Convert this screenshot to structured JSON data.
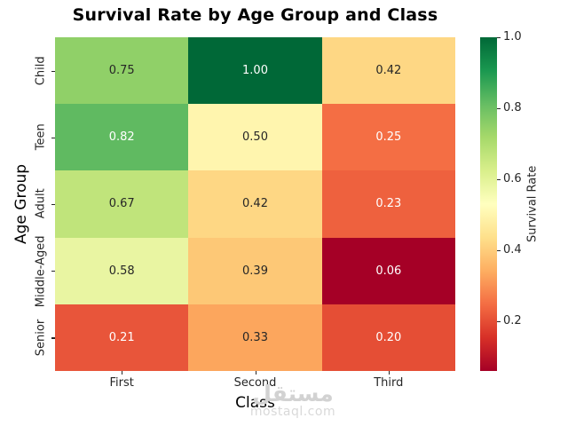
{
  "title": "Survival Rate by Age Group and Class",
  "chart_data": {
    "type": "heatmap",
    "title": "Survival Rate by Age Group and Class",
    "xlabel": "Class",
    "ylabel": "Age Group",
    "columns": [
      "First",
      "Second",
      "Third"
    ],
    "rows": [
      "Child",
      "Teen",
      "Adult",
      "Middle-Aged",
      "Senior"
    ],
    "values": [
      [
        0.75,
        1.0,
        0.42
      ],
      [
        0.82,
        0.5,
        0.25
      ],
      [
        0.67,
        0.42,
        0.23
      ],
      [
        0.58,
        0.39,
        0.06
      ],
      [
        0.21,
        0.33,
        0.2
      ]
    ],
    "cell_labels": [
      [
        "0.75",
        "1.00",
        "0.42"
      ],
      [
        "0.82",
        "0.50",
        "0.25"
      ],
      [
        "0.67",
        "0.42",
        "0.23"
      ],
      [
        "0.58",
        "0.39",
        "0.06"
      ],
      [
        "0.21",
        "0.33",
        "0.20"
      ]
    ],
    "cell_colors": [
      [
        "#90d068",
        "#006837",
        "#fed784"
      ],
      [
        "#60ba61",
        "#fff5ae",
        "#f46e44"
      ],
      [
        "#c0e47b",
        "#fed784",
        "#ee613e"
      ],
      [
        "#e9f5a2",
        "#fdc876",
        "#a50026"
      ],
      [
        "#e8553a",
        "#fca65d",
        "#e54e35"
      ]
    ],
    "cell_text_colors": [
      [
        "#262626",
        "#ffffff",
        "#262626"
      ],
      [
        "#ffffff",
        "#262626",
        "#ffffff"
      ],
      [
        "#262626",
        "#262626",
        "#ffffff"
      ],
      [
        "#262626",
        "#262626",
        "#ffffff"
      ],
      [
        "#ffffff",
        "#262626",
        "#ffffff"
      ]
    ],
    "colormap": "RdYlGn",
    "grid": false,
    "colorbar": {
      "label": "Survival Rate",
      "vmin": 0.06,
      "vmax": 1.0,
      "tick_labels": [
        "1.0",
        "0.8",
        "0.6",
        "0.4",
        "0.2"
      ],
      "tick_values": [
        1.0,
        0.8,
        0.6,
        0.4,
        0.2
      ],
      "gradient_top_to_bottom": [
        "#006837",
        "#1a9850",
        "#66bd63",
        "#a6d96a",
        "#d9ef8b",
        "#ffffbf",
        "#fee08b",
        "#fdae61",
        "#f46d43",
        "#d73027",
        "#a50026"
      ]
    }
  },
  "watermark": {
    "logo": "مستقل",
    "domain": "mostaql.com"
  }
}
